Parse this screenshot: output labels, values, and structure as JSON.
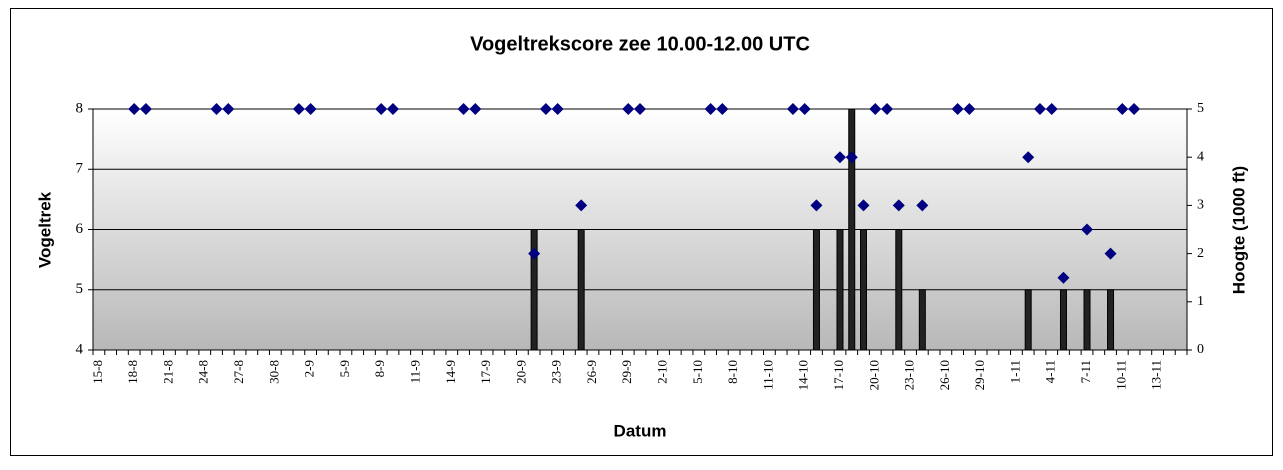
{
  "chart_data": {
    "type": "bar+scatter",
    "title": "Vogeltrekscore zee 10.00-12.00 UTC",
    "x_label": "Datum",
    "y_label": "Vogeltrek",
    "y2_label": "Hoogte (1000 ft)",
    "categories": [
      "15-8",
      null,
      null,
      "18-8",
      null,
      null,
      "21-8",
      null,
      null,
      "24-8",
      null,
      null,
      "27-8",
      null,
      null,
      "30-8",
      null,
      null,
      "2-9",
      null,
      null,
      "5-9",
      null,
      null,
      "8-9",
      null,
      null,
      "11-9",
      null,
      null,
      "14-9",
      null,
      null,
      "17-9",
      null,
      null,
      "20-9",
      null,
      null,
      "23-9",
      null,
      null,
      "26-9",
      null,
      null,
      "29-9",
      null,
      null,
      "2-10",
      null,
      null,
      "5-10",
      null,
      null,
      "8-10",
      null,
      null,
      "11-10",
      null,
      null,
      "14-10",
      null,
      null,
      "17-10",
      null,
      null,
      "20-10",
      null,
      null,
      "23-10",
      null,
      null,
      "26-10",
      null,
      null,
      "29-10",
      null,
      null,
      "1-11",
      null,
      null,
      "4-11",
      null,
      null,
      "7-11",
      null,
      null,
      "10-11",
      null,
      null,
      "13-11",
      null,
      null
    ],
    "series": [
      {
        "type": "bar",
        "color": "#222222",
        "values": [
          null,
          null,
          null,
          null,
          null,
          null,
          null,
          null,
          null,
          null,
          null,
          null,
          null,
          null,
          null,
          null,
          null,
          null,
          null,
          null,
          null,
          null,
          null,
          null,
          null,
          null,
          null,
          null,
          null,
          null,
          null,
          null,
          null,
          null,
          null,
          null,
          null,
          6,
          null,
          null,
          null,
          6,
          null,
          null,
          null,
          null,
          null,
          null,
          null,
          null,
          null,
          null,
          null,
          null,
          null,
          null,
          null,
          null,
          null,
          null,
          null,
          6,
          null,
          6,
          8,
          6,
          null,
          null,
          6,
          null,
          5,
          null,
          null,
          null,
          null,
          null,
          null,
          null,
          null,
          5,
          null,
          null,
          5,
          null,
          5,
          null,
          5,
          null,
          null,
          null,
          null,
          null,
          null
        ]
      },
      {
        "type": "scatter",
        "axis": "y2",
        "color": "#000080",
        "values": [
          null,
          null,
          null,
          5,
          5,
          null,
          null,
          null,
          null,
          null,
          5,
          5,
          null,
          null,
          null,
          null,
          null,
          5,
          5,
          null,
          null,
          null,
          null,
          null,
          5,
          5,
          null,
          null,
          null,
          null,
          null,
          5,
          5,
          null,
          null,
          null,
          null,
          2,
          5,
          5,
          null,
          3,
          null,
          null,
          null,
          5,
          5,
          null,
          null,
          null,
          null,
          null,
          5,
          5,
          null,
          null,
          null,
          null,
          null,
          5,
          5,
          3,
          null,
          4,
          4,
          3,
          5,
          5,
          3,
          null,
          3,
          null,
          null,
          5,
          5,
          null,
          null,
          null,
          null,
          4,
          5,
          5,
          1.5,
          null,
          2.5,
          null,
          2,
          5,
          5,
          null,
          null,
          null,
          null
        ]
      }
    ],
    "ylim": [
      4,
      8
    ],
    "yticks": [
      4,
      5,
      6,
      7,
      8
    ],
    "y2lim": [
      0,
      5
    ],
    "y2ticks": [
      0,
      1,
      2,
      3,
      4,
      5
    ],
    "grid": true
  }
}
